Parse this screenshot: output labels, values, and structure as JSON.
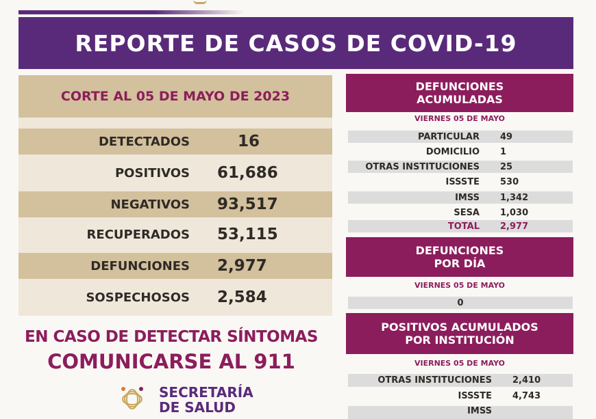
{
  "title": "REPORTE DE CASOS DE COVID-19",
  "corte": "CORTE AL 05 DE MAYO DE 2023",
  "summary": [
    {
      "label": "DETECTADOS",
      "value": "16"
    },
    {
      "label": "POSITIVOS",
      "value": "61,686"
    },
    {
      "label": "NEGATIVOS",
      "value": "93,517"
    },
    {
      "label": "RECUPERADOS",
      "value": "53,115"
    },
    {
      "label": "DEFUNCIONES",
      "value": "2,977"
    },
    {
      "label": "SOSPECHOSOS",
      "value": "2,584"
    }
  ],
  "defunciones_acumuladas": {
    "title_1": "DEFUNCIONES",
    "title_2": "ACUMULADAS",
    "date": "VIERNES 05 DE MAYO",
    "rows": [
      {
        "label": "PARTICULAR",
        "value": "49"
      },
      {
        "label": "DOMICILIO",
        "value": "1"
      },
      {
        "label": "OTRAS INSTITUCIONES",
        "value": "25"
      },
      {
        "label": "ISSSTE",
        "value": "530"
      },
      {
        "label": "IMSS",
        "value": "1,342"
      },
      {
        "label": "SESA",
        "value": "1,030"
      },
      {
        "label": "TOTAL",
        "value": "2,977"
      }
    ]
  },
  "defunciones_dia": {
    "title_1": "DEFUNCIONES",
    "title_2": "POR DÍA",
    "date": "VIERNES 05 DE MAYO",
    "value": "0"
  },
  "positivos_institucion": {
    "title_1": "POSITIVOS ACUMULADOS",
    "title_2": "POR INSTITUCIÓN",
    "date": "VIERNES 05 DE MAYO",
    "rows": [
      {
        "label": "OTRAS INSTITUCIONES",
        "value": "2,410"
      },
      {
        "label": "ISSSTE",
        "value": "4,743"
      },
      {
        "label": "IMSS",
        "value": ""
      }
    ]
  },
  "cta": {
    "line1": "EN CASO DE DETECTAR SÍNTOMAS",
    "line2": "COMUNICARSE AL 911"
  },
  "logo": {
    "line1": "SECRETARÍA",
    "line2": "DE SALUD"
  },
  "colors": {
    "purple": "#5a2a7a",
    "magenta": "#8c1d5c",
    "beige": "#d3c09c",
    "light_beige": "#efe7da",
    "gray": "#dcdcdc"
  }
}
